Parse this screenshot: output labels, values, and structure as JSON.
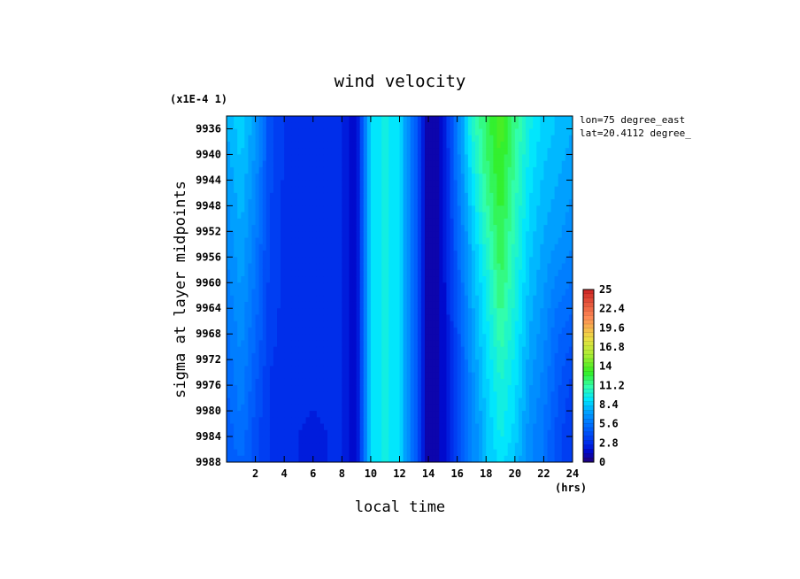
{
  "chart_data": {
    "type": "heatmap",
    "title": "wind velocity",
    "xlabel": "local time",
    "ylabel": "sigma at layer midpoints",
    "x_unit": "(hrs)",
    "y_multiplier": "(x1E-4 1)",
    "annotations": [
      "lon=75 degree_east",
      "lat=20.4112 degree_"
    ],
    "xlim": [
      0,
      24
    ],
    "ylim": [
      9988,
      9934
    ],
    "x_ticks": [
      "2",
      "4",
      "6",
      "8",
      "10",
      "12",
      "14",
      "16",
      "18",
      "20",
      "22",
      "24"
    ],
    "y_ticks": [
      "9936",
      "9940",
      "9944",
      "9948",
      "9952",
      "9956",
      "9960",
      "9964",
      "9968",
      "9972",
      "9976",
      "9980",
      "9984",
      "9988"
    ],
    "colorbar": {
      "labels": [
        "25",
        "22.4",
        "19.6",
        "16.8",
        "14",
        "11.2",
        "8.4",
        "5.6",
        "2.8",
        "0"
      ],
      "min": 0,
      "max": 25
    },
    "x": [
      0,
      1,
      2,
      3,
      4,
      5,
      6,
      7,
      8,
      9,
      10,
      11,
      12,
      13,
      14,
      15,
      16,
      17,
      18,
      19,
      20,
      21,
      22,
      23,
      24
    ],
    "y": [
      9936,
      9944,
      9952,
      9960,
      9968,
      9976,
      9984,
      9988
    ],
    "z": [
      [
        7.5,
        8.5,
        7.0,
        4.0,
        3.0,
        3.0,
        3.0,
        3.0,
        2.5,
        1.5,
        9.0,
        9.5,
        9.0,
        5.0,
        0.5,
        1.5,
        6.0,
        10.0,
        12.0,
        13.5,
        11.5,
        9.5,
        8.5,
        8.0,
        7.5
      ],
      [
        7.0,
        8.0,
        6.5,
        4.0,
        3.0,
        3.0,
        3.0,
        3.0,
        2.5,
        1.5,
        9.0,
        9.5,
        9.0,
        5.0,
        0.5,
        1.5,
        5.5,
        9.0,
        11.5,
        13.0,
        11.0,
        9.0,
        8.0,
        7.5,
        7.0
      ],
      [
        6.5,
        7.5,
        6.0,
        3.5,
        3.0,
        3.0,
        3.0,
        3.0,
        2.5,
        1.5,
        9.0,
        9.5,
        9.0,
        5.0,
        0.5,
        1.5,
        5.0,
        8.0,
        10.5,
        12.5,
        10.5,
        8.5,
        7.5,
        7.0,
        6.5
      ],
      [
        6.0,
        7.0,
        5.5,
        3.5,
        3.0,
        3.0,
        3.0,
        3.0,
        2.5,
        1.5,
        9.0,
        9.5,
        9.0,
        5.0,
        0.5,
        1.5,
        4.5,
        7.5,
        9.5,
        12.0,
        10.0,
        8.0,
        7.0,
        6.0,
        5.5
      ],
      [
        5.5,
        6.5,
        5.0,
        3.5,
        2.8,
        3.0,
        3.0,
        3.0,
        2.5,
        1.5,
        9.0,
        9.5,
        9.0,
        5.0,
        0.5,
        1.5,
        4.0,
        7.0,
        9.0,
        11.0,
        9.5,
        7.5,
        6.5,
        5.0,
        4.5
      ],
      [
        5.0,
        6.0,
        4.5,
        3.0,
        2.5,
        3.0,
        3.0,
        3.0,
        2.5,
        1.5,
        9.0,
        9.5,
        9.0,
        5.0,
        0.5,
        1.5,
        3.5,
        6.5,
        8.5,
        10.0,
        9.0,
        7.0,
        6.0,
        4.5,
        3.5
      ],
      [
        4.5,
        5.5,
        4.0,
        3.0,
        2.5,
        2.5,
        2.0,
        2.5,
        2.5,
        1.5,
        9.0,
        9.5,
        9.0,
        5.0,
        0.5,
        1.5,
        3.5,
        6.0,
        8.0,
        9.5,
        8.5,
        6.5,
        5.5,
        4.0,
        3.0
      ],
      [
        4.5,
        5.0,
        4.0,
        3.0,
        2.5,
        2.5,
        2.0,
        2.5,
        2.5,
        1.5,
        9.0,
        9.5,
        9.0,
        5.0,
        0.5,
        1.5,
        3.5,
        6.0,
        8.0,
        9.0,
        8.0,
        6.5,
        5.5,
        4.0,
        3.0
      ]
    ]
  }
}
